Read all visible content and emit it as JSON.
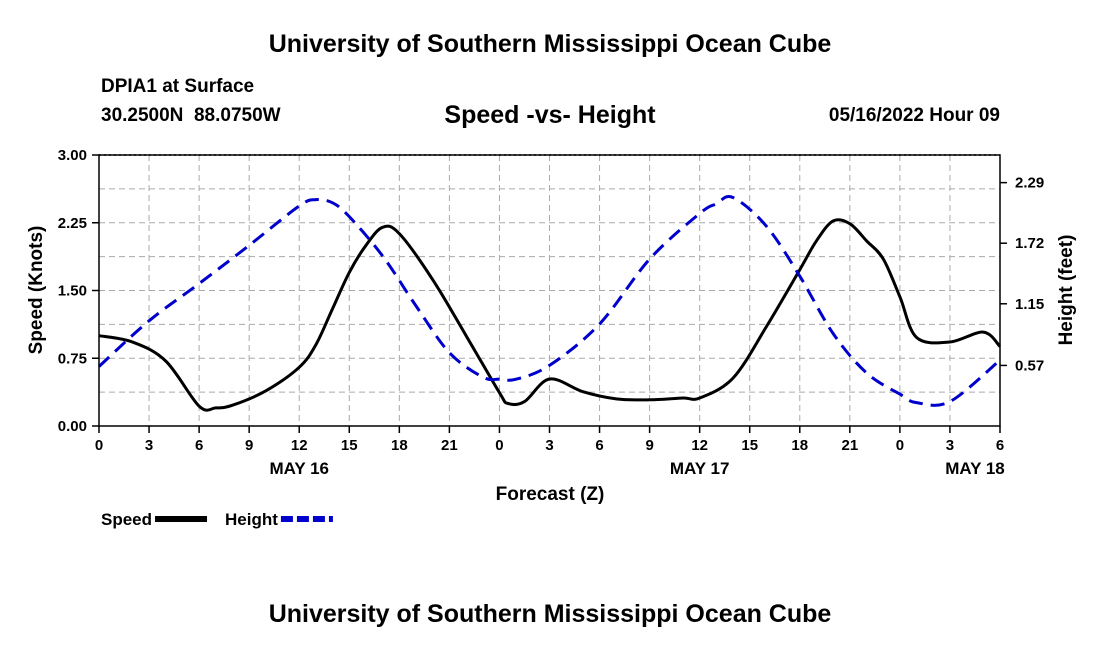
{
  "header": {
    "title": "University of Southern Mississippi Ocean Cube",
    "station": "DPIA1 at Surface",
    "coords": "30.2500N  88.0750W",
    "subtitle": "Speed -vs- Height",
    "datetime": "05/16/2022 Hour 09"
  },
  "footer": {
    "title": "University of Southern Mississippi Ocean Cube"
  },
  "chart_data": {
    "type": "line",
    "title": "Speed -vs- Height",
    "xlabel": "Forecast (Z)",
    "ylabel": "Speed (Knots)",
    "y2label": "Height (feet)",
    "xlim": [
      0,
      54
    ],
    "ylim": [
      0,
      3.0
    ],
    "y2lim": [
      0.0,
      2.55
    ],
    "x_ticks": [
      0,
      3,
      6,
      9,
      12,
      15,
      18,
      21,
      24,
      27,
      30,
      33,
      36,
      39,
      42,
      45,
      48,
      51,
      54
    ],
    "x_tick_labels": [
      "0",
      "3",
      "6",
      "9",
      "12",
      "15",
      "18",
      "21",
      "0",
      "3",
      "6",
      "9",
      "12",
      "15",
      "18",
      "21",
      "0",
      "3",
      "6"
    ],
    "date_labels": [
      {
        "x": 12,
        "label": "MAY 16"
      },
      {
        "x": 36,
        "label": "MAY 17"
      },
      {
        "x": 52.5,
        "label": "MAY 18"
      }
    ],
    "y_ticks": [
      0.0,
      0.75,
      1.5,
      2.25,
      3.0
    ],
    "y_tick_labels": [
      "0.00",
      "0.75",
      "1.50",
      "2.25",
      "3.00"
    ],
    "y2_ticks": [
      0.57,
      1.15,
      1.72,
      2.29
    ],
    "y2_tick_labels": [
      "0.57",
      "1.15",
      "1.72",
      "2.29"
    ],
    "grid": true,
    "legend": [
      {
        "name": "Speed",
        "color": "#000000",
        "dash": "solid"
      },
      {
        "name": "Height",
        "color": "#0000cc",
        "dash": "dashed"
      }
    ],
    "series": [
      {
        "name": "Speed",
        "axis": "left",
        "color": "#000000",
        "x": [
          0,
          2,
          4,
          6,
          7,
          8,
          10,
          12,
          13,
          14,
          15,
          16,
          17,
          18,
          20,
          22,
          24,
          24.5,
          25.5,
          27,
          29,
          31,
          33,
          35,
          36,
          38,
          40,
          42,
          43,
          44,
          45,
          46,
          47,
          48,
          49,
          51,
          53,
          54
        ],
        "values": [
          1.0,
          0.93,
          0.72,
          0.22,
          0.2,
          0.23,
          0.39,
          0.65,
          0.9,
          1.3,
          1.7,
          2.0,
          2.2,
          2.13,
          1.62,
          1.0,
          0.37,
          0.25,
          0.27,
          0.52,
          0.38,
          0.3,
          0.29,
          0.31,
          0.31,
          0.53,
          1.1,
          1.73,
          2.05,
          2.27,
          2.24,
          2.05,
          1.85,
          1.43,
          0.98,
          0.93,
          1.04,
          0.88
        ]
      },
      {
        "name": "Height",
        "axis": "right",
        "color": "#0000cc",
        "x": [
          0,
          3,
          6,
          9,
          12,
          13,
          14,
          15,
          17,
          19,
          21,
          23,
          24,
          25,
          27,
          30,
          33,
          36,
          37,
          38,
          40,
          42,
          44,
          46,
          48,
          49,
          51,
          54
        ],
        "values": [
          0.56,
          0.99,
          1.34,
          1.7,
          2.07,
          2.13,
          2.1,
          1.97,
          1.6,
          1.13,
          0.69,
          0.46,
          0.44,
          0.44,
          0.57,
          0.96,
          1.57,
          2.0,
          2.09,
          2.15,
          1.88,
          1.41,
          0.87,
          0.5,
          0.3,
          0.22,
          0.23,
          0.62
        ]
      }
    ]
  }
}
